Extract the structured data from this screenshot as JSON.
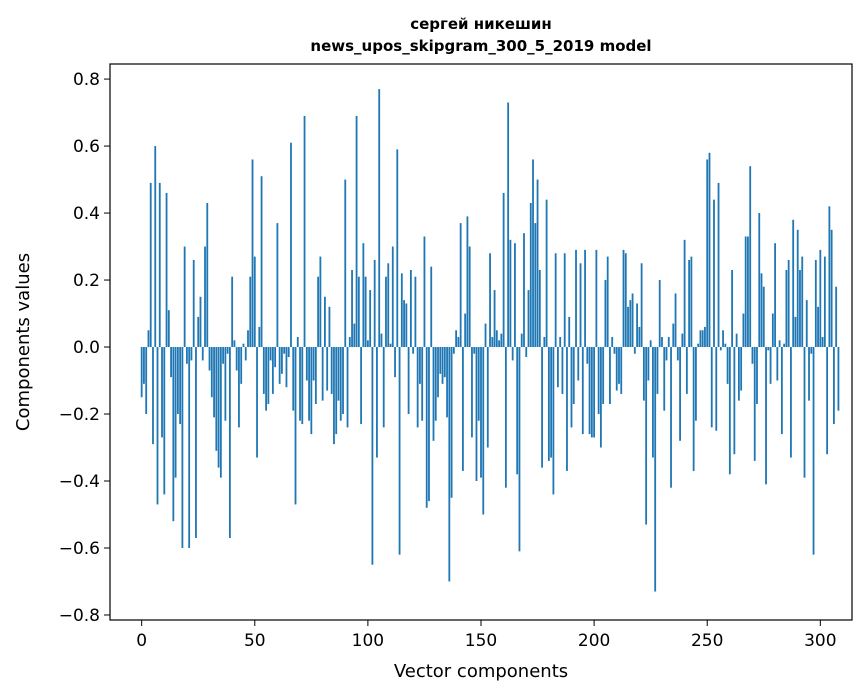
{
  "chart_data": {
    "type": "bar",
    "title_lines": [
      "сергей никешин",
      "news_upos_skipgram_300_5_2019 model"
    ],
    "xlabel": "Vector components",
    "ylabel": "Components values",
    "xlim": [
      -14,
      314
    ],
    "ylim": [
      -0.815,
      0.845
    ],
    "xticks": [
      0,
      50,
      100,
      150,
      200,
      250,
      300
    ],
    "yticks": [
      -0.8,
      -0.6,
      -0.4,
      -0.2,
      0.0,
      0.2,
      0.4,
      0.6,
      0.8
    ],
    "ytick_labels": [
      "−0.8",
      "−0.6",
      "−0.4",
      "−0.2",
      "0.0",
      "0.2",
      "0.4",
      "0.6",
      "0.8"
    ],
    "bar_color": "#1f77b4",
    "grid": false,
    "values": [
      -0.15,
      -0.11,
      -0.2,
      0.05,
      0.49,
      -0.29,
      0.6,
      -0.47,
      0.49,
      -0.27,
      -0.44,
      0.46,
      0.11,
      -0.09,
      -0.52,
      -0.39,
      -0.2,
      -0.23,
      -0.6,
      0.3,
      -0.05,
      -0.6,
      -0.04,
      0.26,
      -0.57,
      0.09,
      0.15,
      -0.04,
      0.3,
      0.43,
      -0.07,
      -0.15,
      -0.21,
      -0.31,
      -0.36,
      -0.39,
      -0.05,
      -0.22,
      -0.02,
      -0.57,
      0.21,
      0.02,
      -0.07,
      -0.24,
      -0.11,
      0.01,
      -0.04,
      0.05,
      0.21,
      0.56,
      0.27,
      -0.33,
      0.06,
      0.51,
      -0.14,
      -0.19,
      -0.17,
      -0.04,
      -0.14,
      -0.06,
      0.37,
      -0.11,
      -0.08,
      -0.02,
      -0.12,
      -0.03,
      0.61,
      -0.19,
      -0.47,
      0.03,
      -0.22,
      -0.23,
      0.69,
      -0.1,
      -0.22,
      -0.26,
      -0.1,
      -0.17,
      0.21,
      0.27,
      -0.16,
      0.15,
      -0.13,
      0.12,
      -0.14,
      -0.29,
      -0.26,
      -0.16,
      -0.22,
      -0.2,
      0.5,
      -0.24,
      0.03,
      0.23,
      0.07,
      0.69,
      0.21,
      -0.23,
      0.31,
      0.21,
      0.02,
      0.17,
      -0.65,
      0.26,
      -0.33,
      0.77,
      0.04,
      -0.24,
      0.21,
      0.25,
      0.01,
      0.3,
      -0.09,
      0.59,
      -0.62,
      0.22,
      0.14,
      0.13,
      -0.2,
      0.23,
      -0.02,
      0.21,
      -0.24,
      -0.11,
      -0.22,
      0.33,
      -0.48,
      -0.46,
      0.24,
      -0.28,
      -0.22,
      -0.15,
      -0.08,
      -0.11,
      -0.09,
      -0.21,
      -0.7,
      -0.45,
      -0.02,
      0.05,
      0.03,
      0.37,
      -0.37,
      0.1,
      0.39,
      0.3,
      -0.27,
      -0.02,
      -0.4,
      -0.22,
      -0.39,
      -0.5,
      0.07,
      -0.3,
      0.28,
      0.03,
      0.17,
      0.05,
      0.02,
      0.04,
      0.46,
      -0.42,
      0.73,
      0.32,
      -0.04,
      0.31,
      -0.38,
      -0.61,
      0.04,
      0.34,
      -0.03,
      0.17,
      0.43,
      0.56,
      0.37,
      0.5,
      0.23,
      -0.36,
      0.03,
      0.44,
      -0.34,
      -0.33,
      -0.44,
      0.28,
      -0.12,
      0.03,
      -0.14,
      0.28,
      -0.37,
      0.09,
      -0.24,
      -0.17,
      0.29,
      -0.1,
      0.25,
      -0.26,
      0.29,
      -0.05,
      -0.26,
      -0.27,
      -0.27,
      0.29,
      -0.2,
      -0.3,
      -0.17,
      0.2,
      0.27,
      -0.17,
      0.03,
      -0.02,
      -0.13,
      -0.11,
      -0.14,
      0.29,
      0.28,
      0.12,
      0.14,
      0.16,
      -0.02,
      0.13,
      0.06,
      0.25,
      -0.16,
      -0.53,
      -0.1,
      0.02,
      -0.33,
      -0.73,
      -0.14,
      0.2,
      0.03,
      -0.19,
      -0.04,
      0.03,
      -0.42,
      0.07,
      0.16,
      -0.04,
      -0.28,
      0.04,
      0.32,
      -0.14,
      0.26,
      0.27,
      -0.37,
      -0.22,
      0.01,
      0.05,
      0.05,
      0.06,
      0.56,
      0.58,
      -0.24,
      0.44,
      -0.25,
      0.49,
      -0.01,
      0.05,
      0.01,
      -0.11,
      -0.38,
      0.23,
      -0.32,
      0.04,
      -0.16,
      -0.13,
      0.1,
      0.33,
      0.33,
      0.54,
      -0.05,
      -0.34,
      -0.17,
      0.4,
      0.22,
      0.18,
      -0.41,
      -0.01,
      -0.11,
      0.1,
      0.31,
      -0.1,
      0.02,
      -0.26,
      0.01,
      0.23,
      0.26,
      -0.33,
      0.38,
      0.09,
      0.35,
      0.23,
      0.27,
      -0.39,
      0.14,
      -0.16,
      -0.02,
      -0.62,
      0.26,
      0.12,
      0.29,
      0.03,
      0.27,
      -0.32,
      0.42,
      0.35,
      -0.23,
      0.18,
      -0.19
    ]
  }
}
